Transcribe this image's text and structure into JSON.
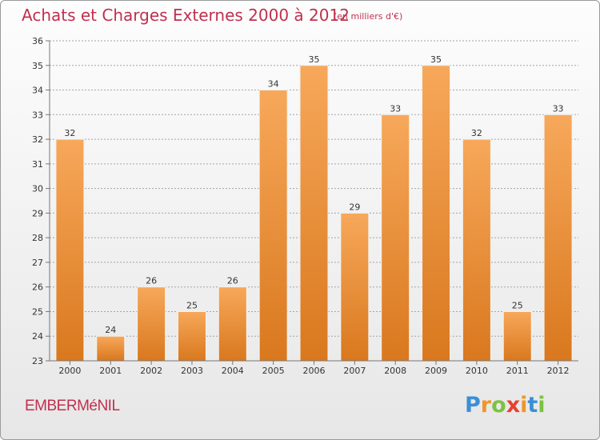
{
  "title": "Achats et Charges Externes 2000 à 2012",
  "subtitle": "(en milliers d'€)",
  "commune": "EMBERMéNIL",
  "logo": {
    "letters": [
      "P",
      "r",
      "o",
      "x",
      "i",
      "t",
      "i"
    ],
    "colors": [
      "#3a8fd6",
      "#f0962a",
      "#7cc242",
      "#e8402f",
      "#f0962a",
      "#3a8fd6",
      "#7cc242"
    ]
  },
  "colors": {
    "title": "#c0304f",
    "bar_light": "#f7a85a",
    "bar_dark": "#d9781e",
    "grid": "#9a9a9a"
  },
  "chart_data": {
    "type": "bar",
    "title": "Achats et Charges Externes 2000 à 2012",
    "categories": [
      "2000",
      "2001",
      "2002",
      "2003",
      "2004",
      "2005",
      "2006",
      "2007",
      "2008",
      "2009",
      "2010",
      "2011",
      "2012"
    ],
    "values": [
      32,
      24,
      26,
      25,
      26,
      34,
      35,
      29,
      33,
      35,
      32,
      25,
      33
    ],
    "ylim": [
      23,
      36
    ],
    "yticks": [
      23,
      24,
      25,
      26,
      27,
      28,
      29,
      30,
      31,
      32,
      33,
      34,
      35,
      36
    ],
    "grid": true,
    "data_labels": true
  }
}
